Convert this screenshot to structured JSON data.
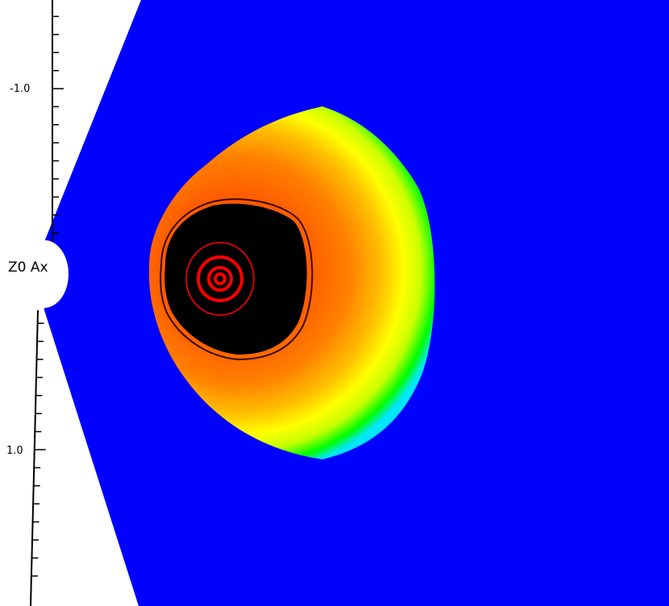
{
  "chart_data": {
    "type": "heatmap",
    "background_color": "#0000ff",
    "colormap": [
      "#0000ff",
      "#00e6ff",
      "#00ff00",
      "#c8ff00",
      "#ffff00",
      "#ffc000",
      "#ff8000",
      "#ff5a00",
      "#000000"
    ],
    "contour_color": "#ff0000",
    "y_axis": {
      "label": "Z0 Ax",
      "ticks": [
        {
          "value": -1.0,
          "label": "-1.0"
        },
        {
          "value": 1.0,
          "label": "1.0"
        }
      ]
    },
    "grid": false,
    "legend": "none"
  }
}
